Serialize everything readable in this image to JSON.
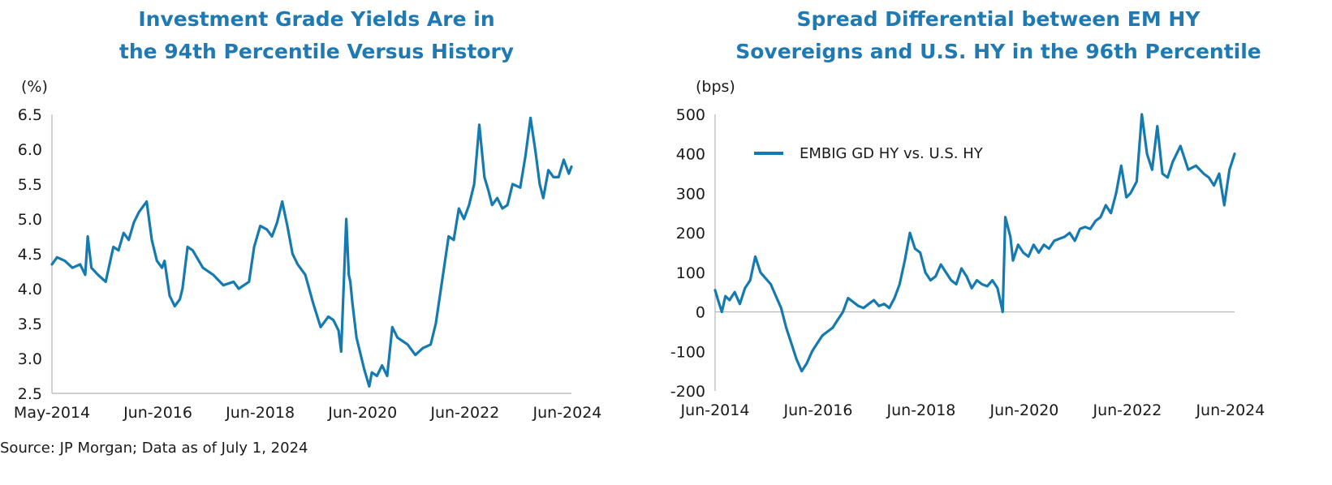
{
  "source": "Source: JP Morgan; Data as of July 1, 2024",
  "colors": {
    "title": "#1f7ab3",
    "line": "#157ab0",
    "axis": "#b5b5b5"
  },
  "left": {
    "title_lines": [
      "Investment Grade Yields Are in",
      "the 94th Percentile Versus History"
    ],
    "unit": "(%)"
  },
  "right": {
    "title_lines": [
      "Spread Differential between EM HY",
      "Sovereigns and U.S. HY in the 96th Percentile"
    ],
    "unit": "(bps)"
  },
  "chart_data": [
    {
      "type": "line",
      "title": "Investment Grade Yields Are in the 94th Percentile Versus History",
      "ylabel": "(%)",
      "xlabel": "",
      "ylim": [
        2.5,
        6.5
      ],
      "yticks": [
        2.5,
        3.0,
        3.5,
        4.0,
        4.5,
        5.0,
        5.5,
        6.0,
        6.5
      ],
      "ytick_labels": [
        "2.5",
        "3.0",
        "3.5",
        "4.0",
        "4.5",
        "5.0",
        "5.5",
        "6.0",
        "6.5"
      ],
      "xlim": [
        2014.35,
        2024.5
      ],
      "xticks": [
        2014.35,
        2016.42,
        2018.42,
        2020.42,
        2022.42,
        2024.42
      ],
      "xtick_labels": [
        "May-2014",
        "Jun-2016",
        "Jun-2018",
        "Jun-2020",
        "Jun-2022",
        "Jun-2024"
      ],
      "legend": false,
      "series": [
        {
          "name": "Investment Grade Yield",
          "x": [
            2014.35,
            2014.45,
            2014.6,
            2014.75,
            2014.9,
            2015.0,
            2015.05,
            2015.12,
            2015.25,
            2015.4,
            2015.55,
            2015.65,
            2015.75,
            2015.85,
            2015.95,
            2016.05,
            2016.2,
            2016.3,
            2016.4,
            2016.5,
            2016.55,
            2016.65,
            2016.75,
            2016.85,
            2016.9,
            2017.0,
            2017.1,
            2017.3,
            2017.5,
            2017.7,
            2017.9,
            2018.0,
            2018.1,
            2018.2,
            2018.3,
            2018.42,
            2018.55,
            2018.65,
            2018.75,
            2018.85,
            2018.95,
            2019.05,
            2019.15,
            2019.3,
            2019.45,
            2019.6,
            2019.75,
            2019.85,
            2019.95,
            2020.0,
            2020.1,
            2020.15,
            2020.18,
            2020.22,
            2020.3,
            2020.45,
            2020.55,
            2020.6,
            2020.7,
            2020.8,
            2020.9,
            2021.0,
            2021.1,
            2021.2,
            2021.3,
            2021.45,
            2021.6,
            2021.75,
            2021.85,
            2022.0,
            2022.1,
            2022.2,
            2022.3,
            2022.4,
            2022.5,
            2022.6,
            2022.7,
            2022.8,
            2022.88,
            2022.95,
            2023.05,
            2023.15,
            2023.25,
            2023.35,
            2023.5,
            2023.6,
            2023.7,
            2023.8,
            2023.88,
            2023.95,
            2024.05,
            2024.15,
            2024.25,
            2024.35,
            2024.45,
            2024.5
          ],
          "y": [
            4.35,
            4.45,
            4.4,
            4.3,
            4.35,
            4.2,
            4.75,
            4.3,
            4.2,
            4.1,
            4.6,
            4.55,
            4.8,
            4.7,
            4.95,
            5.1,
            5.25,
            4.7,
            4.4,
            4.3,
            4.4,
            3.9,
            3.75,
            3.85,
            4.0,
            4.6,
            4.55,
            4.3,
            4.2,
            4.05,
            4.1,
            4.0,
            4.05,
            4.1,
            4.6,
            4.9,
            4.85,
            4.75,
            4.95,
            5.25,
            4.9,
            4.5,
            4.35,
            4.2,
            3.8,
            3.45,
            3.6,
            3.55,
            3.4,
            3.1,
            5.0,
            4.2,
            4.1,
            3.8,
            3.3,
            2.85,
            2.6,
            2.8,
            2.75,
            2.9,
            2.75,
            3.45,
            3.3,
            3.25,
            3.2,
            3.05,
            3.15,
            3.2,
            3.5,
            4.25,
            4.75,
            4.7,
            5.15,
            5.0,
            5.2,
            5.5,
            6.35,
            5.6,
            5.4,
            5.2,
            5.3,
            5.15,
            5.2,
            5.5,
            5.45,
            5.9,
            6.45,
            5.95,
            5.5,
            5.3,
            5.7,
            5.6,
            5.6,
            5.85,
            5.65,
            5.75
          ]
        }
      ]
    },
    {
      "type": "line",
      "title": "Spread Differential between EM HY Sovereigns and U.S. HY in the 96th Percentile",
      "ylabel": "(bps)",
      "xlabel": "",
      "ylim": [
        -200,
        500
      ],
      "yticks": [
        -200,
        -100,
        0,
        100,
        200,
        300,
        400,
        500
      ],
      "ytick_labels": [
        "-200",
        "-100",
        "0",
        "100",
        "200",
        "300",
        "400",
        "500"
      ],
      "xlim": [
        2014.42,
        2024.5
      ],
      "xticks": [
        2014.42,
        2016.42,
        2018.42,
        2020.42,
        2022.42,
        2024.42
      ],
      "xtick_labels": [
        "Jun-2014",
        "Jun-2016",
        "Jun-2018",
        "Jun-2020",
        "Jun-2022",
        "Jun-2024"
      ],
      "legend": true,
      "legend_position": "top-left",
      "series": [
        {
          "name": "EMBIG GD HY vs. U.S. HY",
          "x": [
            2014.42,
            2014.5,
            2014.55,
            2014.62,
            2014.7,
            2014.8,
            2014.9,
            2015.0,
            2015.1,
            2015.2,
            2015.3,
            2015.4,
            2015.5,
            2015.6,
            2015.7,
            2015.8,
            2015.9,
            2016.0,
            2016.1,
            2016.2,
            2016.3,
            2016.4,
            2016.5,
            2016.6,
            2016.7,
            2016.8,
            2016.9,
            2017.0,
            2017.1,
            2017.2,
            2017.3,
            2017.4,
            2017.5,
            2017.6,
            2017.7,
            2017.8,
            2017.9,
            2018.0,
            2018.1,
            2018.2,
            2018.3,
            2018.4,
            2018.5,
            2018.6,
            2018.7,
            2018.8,
            2018.9,
            2019.0,
            2019.1,
            2019.2,
            2019.3,
            2019.4,
            2019.5,
            2019.6,
            2019.7,
            2019.8,
            2019.9,
            2020.0,
            2020.05,
            2020.15,
            2020.2,
            2020.3,
            2020.4,
            2020.5,
            2020.6,
            2020.7,
            2020.8,
            2020.9,
            2021.0,
            2021.1,
            2021.2,
            2021.3,
            2021.4,
            2021.5,
            2021.6,
            2021.7,
            2021.8,
            2021.9,
            2022.0,
            2022.1,
            2022.2,
            2022.3,
            2022.4,
            2022.48,
            2022.6,
            2022.7,
            2022.8,
            2022.9,
            2023.0,
            2023.1,
            2023.2,
            2023.3,
            2023.45,
            2023.6,
            2023.75,
            2023.9,
            2024.0,
            2024.1,
            2024.2,
            2024.3,
            2024.4,
            2024.5
          ],
          "y": [
            55,
            20,
            0,
            40,
            30,
            50,
            20,
            60,
            80,
            140,
            100,
            85,
            70,
            40,
            10,
            -40,
            -80,
            -120,
            -150,
            -130,
            -100,
            -80,
            -60,
            -50,
            -40,
            -20,
            0,
            35,
            25,
            15,
            10,
            20,
            30,
            15,
            20,
            10,
            35,
            70,
            130,
            200,
            160,
            150,
            100,
            80,
            90,
            120,
            100,
            80,
            70,
            110,
            90,
            60,
            80,
            70,
            65,
            80,
            60,
            0,
            240,
            190,
            130,
            170,
            150,
            140,
            170,
            150,
            170,
            160,
            180,
            185,
            190,
            200,
            180,
            210,
            215,
            210,
            230,
            240,
            270,
            250,
            300,
            370,
            290,
            300,
            330,
            500,
            400,
            360,
            470,
            350,
            340,
            380,
            420,
            360,
            370,
            350,
            340,
            320,
            350,
            270,
            360,
            400
          ]
        }
      ]
    }
  ]
}
